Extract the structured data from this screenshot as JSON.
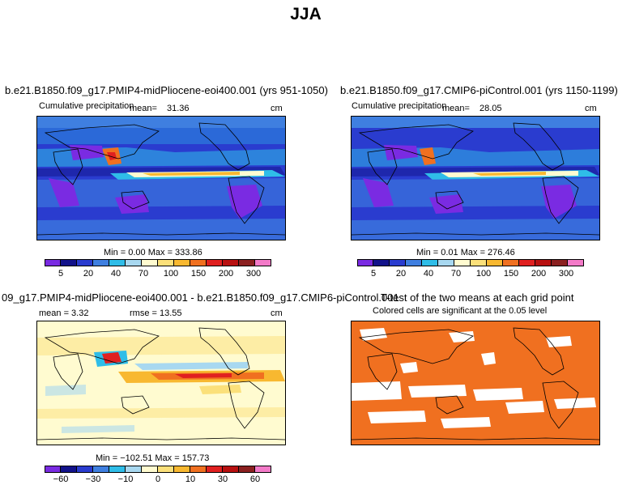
{
  "title": "JJA",
  "panels": [
    {
      "title": "b.e21.B1850.f09_g17.PMIP4-midPliocene-eoi400.001 (yrs 951-1050)",
      "subtitle": "Cumulative precipitation",
      "mean_label": "mean=",
      "mean_value": "31.36",
      "units": "cm",
      "min_max": "Min =   0.00 Max = 333.86"
    },
    {
      "title": "b.e21.B1850.f09_g17.CMIP6-piControl.001 (yrs 1150-1199)",
      "subtitle": "Cumulative precipitation",
      "mean_label": "mean=",
      "mean_value": "28.05",
      "units": "cm",
      "min_max": "Min =   0.01 Max = 276.46"
    },
    {
      "title": "09_g17.PMIP4-midPliocene-eoi400.001 - b.e21.B1850.f09_g17.CMIP6-piControl.001",
      "mean_text": "mean =   3.32",
      "rmse_text": "rmse =   13.55",
      "units": "cm",
      "min_max": "Min = −102.51 Max = 157.73"
    },
    {
      "title": "T-test of the two means at each grid point",
      "subtitle": "Colored cells are significant at the 0.05 level"
    }
  ],
  "chart_data": [
    {
      "type": "heatmap",
      "name": "precip-colorbar",
      "levels": [
        "5",
        "20",
        "40",
        "70",
        "100",
        "150",
        "200",
        "300"
      ],
      "colors": [
        "#7a2be2",
        "#12128a",
        "#2a3ccf",
        "#3f7fe0",
        "#2fbde8",
        "#a8d8f0",
        "#fffbd0",
        "#fbe07a",
        "#f8b830",
        "#f07020",
        "#e02020",
        "#b81010",
        "#8b2020",
        "#f37ac8"
      ]
    },
    {
      "type": "heatmap",
      "name": "diff-colorbar",
      "levels": [
        "−60",
        "−30",
        "−10",
        "0",
        "10",
        "30",
        "60"
      ],
      "colors": [
        "#7a2be2",
        "#12128a",
        "#2a3ccf",
        "#3f7fe0",
        "#2fbde8",
        "#a8d8f0",
        "#fffbd0",
        "#fbe07a",
        "#f8b830",
        "#f07020",
        "#e02020",
        "#b81010",
        "#8b2020",
        "#f37ac8"
      ]
    }
  ]
}
